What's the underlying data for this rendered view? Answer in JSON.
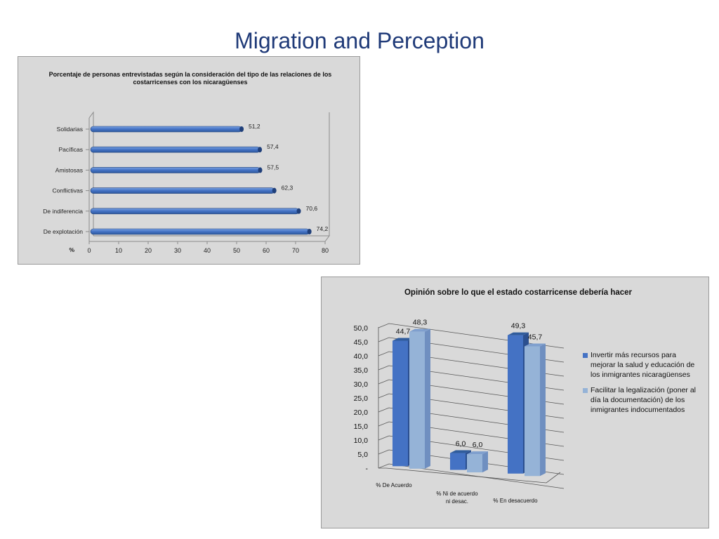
{
  "page": {
    "title": "Migration and Perception"
  },
  "colors": {
    "bar_dark": "#4472c4",
    "bar_light": "#95b3d7",
    "bar_h1": "#2e5aa0",
    "bar_h2": "#7aa3e2",
    "panel_bg": "#d9d9d9",
    "title": "#1f3a78"
  },
  "chart_data": [
    {
      "type": "bar",
      "orientation": "horizontal",
      "title": "Porcentaje de personas entrevistadas según la consideración del tipo de las relaciones de los costarricenses con los nicaragüenses",
      "categories": [
        "Solidarias",
        "Pacíficas",
        "Amistosas",
        "Conflictivas",
        "De indiferencia",
        "De explotación"
      ],
      "values": [
        51.2,
        57.4,
        57.5,
        62.3,
        70.6,
        74.2
      ],
      "value_labels": [
        "51,2",
        "57,4",
        "57,5",
        "62,3",
        "70,6",
        "74,2"
      ],
      "xlabel": "%",
      "xlim": [
        0,
        80
      ],
      "xticks": [
        "0",
        "10",
        "20",
        "30",
        "40",
        "50",
        "60",
        "70",
        "80"
      ],
      "grid": false
    },
    {
      "type": "bar",
      "orientation": "vertical",
      "title": "Opinión sobre lo que el estado costarricense debería hacer",
      "categories": [
        "% De Acuerdo",
        "% Ni de acuerdo ni desac.",
        "% En desacuerdo"
      ],
      "series": [
        {
          "name": "Invertir más recursos para mejorar la salud y educación de los inmigrantes nicaragüenses",
          "values": [
            44.7,
            6.0,
            49.3
          ],
          "labels": [
            "44,7",
            "6,0",
            "49,3"
          ]
        },
        {
          "name": "Facilitar la legalización (poner al día la documentación) de los inmigrantes indocumentados",
          "values": [
            48.3,
            6.0,
            45.7
          ],
          "labels": [
            "48,3",
            "6,0",
            "45,7"
          ]
        }
      ],
      "ylim": [
        0,
        50
      ],
      "yticks": [
        "-",
        "5,0",
        "10,0",
        "15,0",
        "20,0",
        "25,0",
        "30,0",
        "35,0",
        "40,0",
        "45,0",
        "50,0"
      ],
      "grid": true,
      "legend": "right"
    }
  ]
}
